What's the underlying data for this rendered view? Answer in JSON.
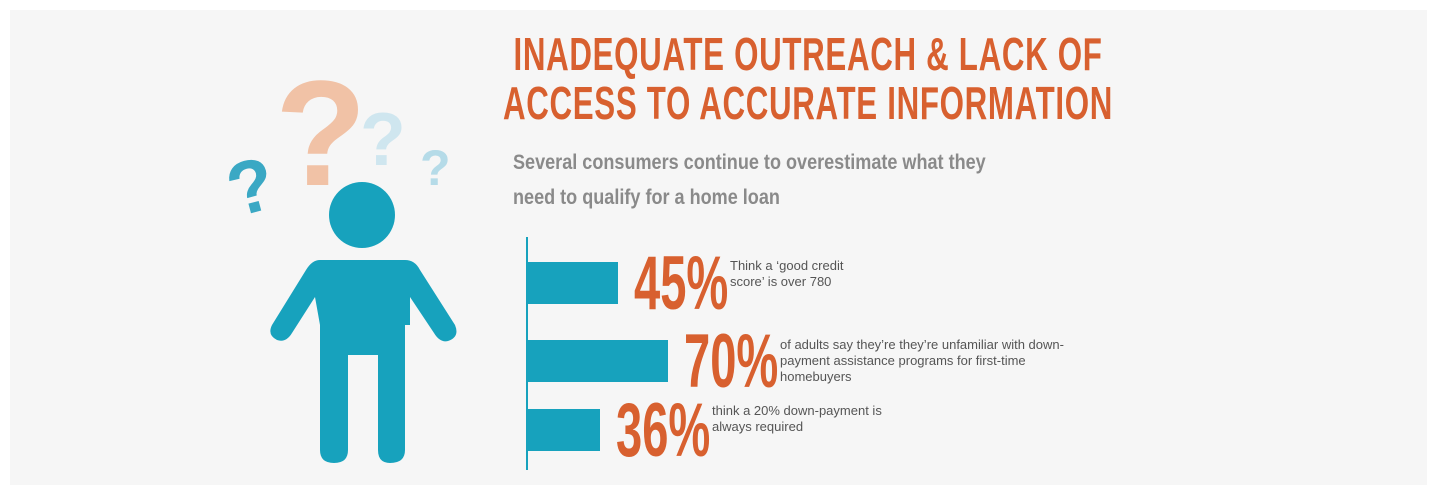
{
  "chart_data": {
    "type": "bar",
    "orientation": "horizontal",
    "title": "Inadequate Outreach & Lack of Access to Accurate Information",
    "subtitle": "Several consumers continue to overestimate what they need to qualify for a home loan",
    "categories": [
      "Think a ‘good credit score’ is over 780",
      "of adults say they’re they’re unfamiliar with down-payment assistance programs for first-time homebuyers",
      "think a 20% down-payment is always required"
    ],
    "values": [
      45,
      70,
      36
    ],
    "value_labels": [
      "45%",
      "70%",
      "36%"
    ],
    "color": "#17a2bd",
    "label_color": "#d8602f",
    "xlim": [
      0,
      100
    ]
  }
}
